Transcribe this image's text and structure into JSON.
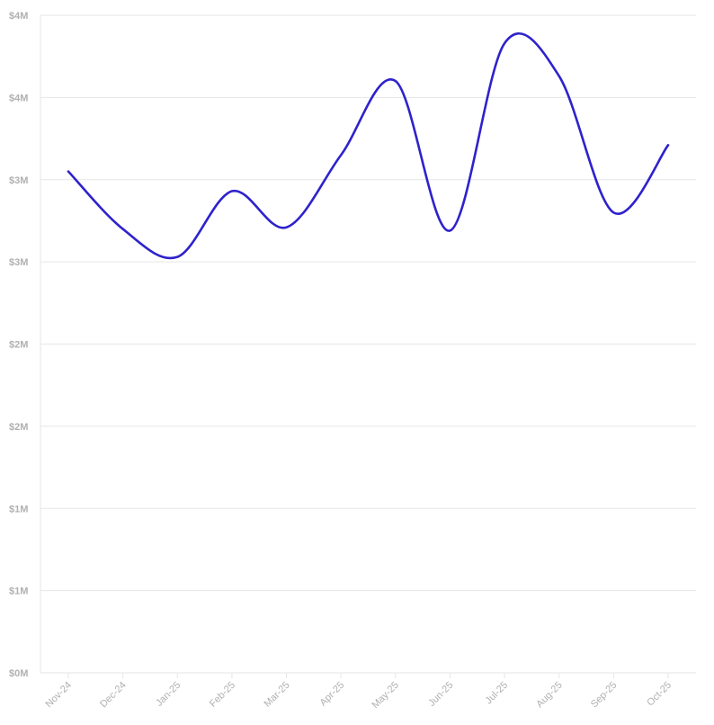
{
  "chart_data": {
    "type": "line",
    "title": "",
    "xlabel": "",
    "ylabel": "",
    "x": [
      "Nov-24",
      "Dec-24",
      "Jan-25",
      "Feb-25",
      "Mar-25",
      "Apr-25",
      "May-25",
      "Jun-25",
      "Jul-25",
      "Aug-25",
      "Sep-25",
      "Oct-25"
    ],
    "series": [
      {
        "values": [
          3050000,
          2700000,
          2530000,
          2930000,
          2710000,
          3150000,
          3600000,
          2690000,
          3830000,
          3630000,
          2800000,
          3210000
        ],
        "color": "#2f22cc"
      }
    ],
    "ylim": [
      0,
      4000000
    ],
    "yticks": [
      0,
      500000,
      1000000,
      1500000,
      2000000,
      2500000,
      3000000,
      3500000,
      4000000
    ],
    "ytick_labels": [
      "$0M",
      "$1M",
      "$1M",
      "$2M",
      "$2M",
      "$3M",
      "$3M",
      "$4M",
      "$4M"
    ],
    "grid": true,
    "legend": "none"
  }
}
